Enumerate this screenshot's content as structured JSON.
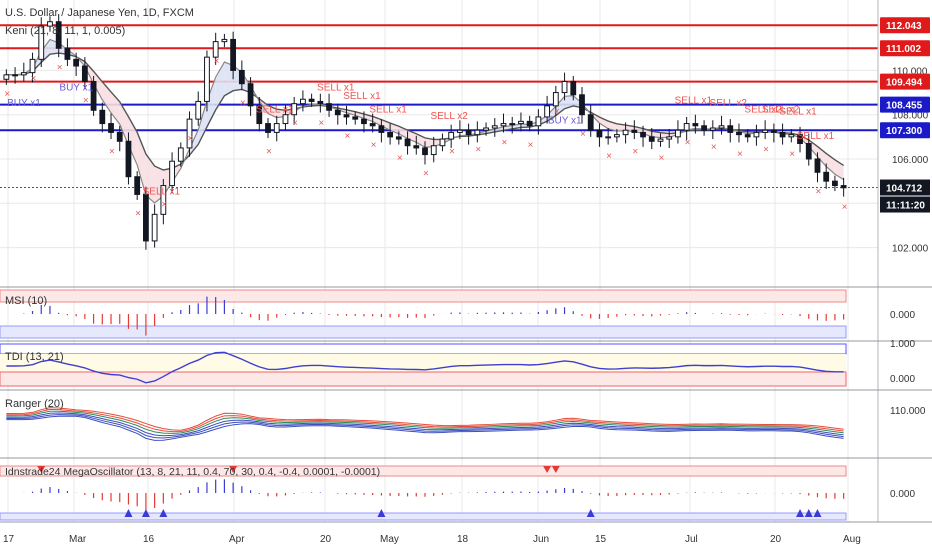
{
  "chart_data": {
    "type": "candlestick",
    "title": "U.S. Dollar / Japanese Yen, 1D, FXCM",
    "overlay_label": "Keni (21, 8, 11, 1, 0.005)",
    "y_ticks": [
      102.0,
      104.0,
      106.0,
      108.0,
      110.0
    ],
    "y_range": [
      100.4,
      113.0
    ],
    "last_price": 104.712,
    "countdown": "11:11:20",
    "x_tick_labels": [
      "17",
      "Mar",
      "16",
      "Apr",
      "20",
      "May",
      "18",
      "Jun",
      "15",
      "Jul",
      "20",
      "Aug"
    ],
    "horizontal_levels": [
      {
        "value": 112.043,
        "label": "112.043",
        "color": "#e0191b"
      },
      {
        "value": 111.002,
        "label": "111.002",
        "color": "#e0191b"
      },
      {
        "value": 109.494,
        "label": "109.494",
        "color": "#e0191b"
      },
      {
        "value": 108.455,
        "label": "108.455",
        "color": "#1a1ac8"
      },
      {
        "value": 107.3,
        "label": "107.300",
        "color": "#1a1ac8"
      }
    ],
    "closes": [
      109.8,
      109.8,
      109.9,
      110.5,
      112.0,
      112.2,
      111.0,
      110.5,
      110.2,
      109.5,
      108.2,
      107.6,
      107.2,
      106.8,
      105.2,
      104.4,
      102.3,
      103.5,
      104.8,
      105.9,
      106.5,
      107.8,
      108.6,
      110.6,
      111.3,
      111.4,
      110.0,
      109.4,
      108.4,
      107.6,
      107.2,
      107.6,
      108.0,
      108.5,
      108.7,
      108.6,
      108.5,
      108.2,
      108.0,
      107.9,
      107.8,
      107.6,
      107.5,
      107.2,
      107.0,
      106.9,
      106.6,
      106.5,
      106.2,
      106.6,
      106.9,
      107.2,
      107.3,
      107.1,
      107.3,
      107.4,
      107.5,
      107.6,
      107.6,
      107.7,
      107.5,
      107.9,
      108.4,
      109.0,
      109.5,
      108.9,
      108.0,
      107.3,
      107.0,
      107.0,
      107.1,
      107.3,
      107.2,
      107.0,
      106.8,
      106.9,
      107.0,
      107.3,
      107.6,
      107.5,
      107.3,
      107.4,
      107.5,
      107.2,
      107.1,
      107.0,
      107.2,
      107.3,
      107.2,
      107.0,
      107.1,
      106.7,
      106.0,
      105.4,
      105.0,
      104.8,
      104.7
    ],
    "markers": {
      "buy": [
        "BUY x1",
        "BUY x1",
        "BUY x1"
      ],
      "sell": [
        "SELL x1",
        "SELL x1",
        "SELL x1",
        "SELL x1",
        "SELL x1",
        "SELL x2",
        "SELL x1",
        "SELL x2",
        "SELL x2",
        "SELL x2",
        "SELL x1",
        "SELL x1"
      ]
    },
    "panels": [
      {
        "title": "MSI (10)",
        "ticks": [
          "0.000"
        ]
      },
      {
        "title": "TDI (13, 21)",
        "ticks": [
          "1.000",
          "0.000"
        ]
      },
      {
        "title": "Ranger (20)",
        "ticks": [
          "110.000"
        ]
      },
      {
        "title": "Idnstrade24 MegaOscillator (13, 8, 21, 11, 0.4, 70, 30, 0.4, -0.4, 0.0001, -0.0001)",
        "ticks": [
          "0.000"
        ]
      }
    ]
  },
  "colors": {
    "candle": "#131722",
    "grid": "#e8e8e8",
    "bull_fill": "#ffffff",
    "bear_fill": "#131722",
    "ma_slow": "#555555",
    "ma_fast": "#888888",
    "cloud_up": "#dde2f5",
    "cloud_down": "#f8dfe2",
    "buy": "#6b5bd6",
    "sell": "#ef5350",
    "tdi_line": "#3f3fd0",
    "ranger_red": "#e74c3c",
    "ranger_blue": "#3d4fbf",
    "ranger_green": "#2e8b57",
    "osc_red": "#e53935",
    "osc_blue": "#3b3bd6",
    "osc_green": "#2e7d32"
  }
}
